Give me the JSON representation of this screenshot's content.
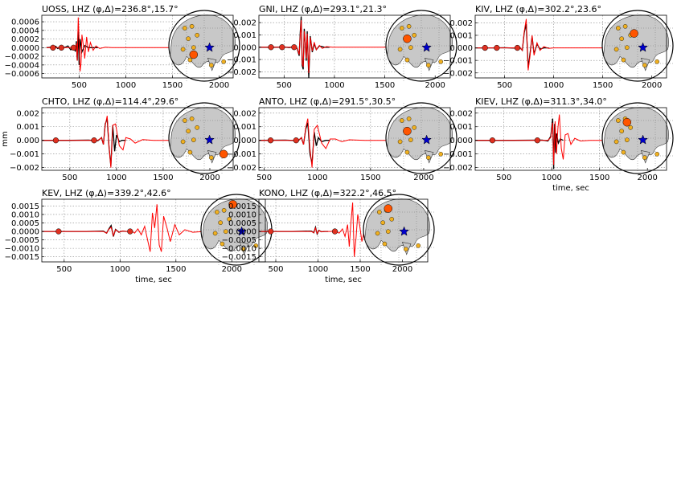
{
  "figure": {
    "y_unit_label": "mm",
    "x_unit_label": "time, sec"
  },
  "colors": {
    "observed": "#000000",
    "synthetic": "#ff0000",
    "station_marker": "#e03020",
    "globe_land": "#c8c8c8",
    "globe_ocean": "#ffffff",
    "event_star": "#0000cc",
    "other_stations": "#f0b020",
    "highlight_station": "#ff5500"
  },
  "chart_data": [
    {
      "type": "line",
      "title": "UOSS, LHZ (φ,Δ)=236.8°,15.7°",
      "xlim": [
        100,
        2150
      ],
      "ylim": [
        -0.0007,
        0.00075
      ],
      "xticks": [
        500,
        1000,
        1500,
        2000
      ],
      "xtick_labels": [
        "500",
        "1000",
        "1500",
        "2000"
      ],
      "yticks": [
        -0.0006,
        -0.0004,
        -0.0002,
        0.0,
        0.0002,
        0.0004,
        0.0006
      ],
      "ytick_labels": [
        "−0.0006",
        "−0.0004",
        "−0.0002",
        "0.0000",
        "0.0002",
        "0.0004",
        "0.0006"
      ],
      "xlabel": "",
      "ylabel": "",
      "markers_x": [
        220,
        310,
        440
      ],
      "series": [
        {
          "role": "observed",
          "x": [
            150,
            200,
            230,
            250,
            270,
            300,
            320,
            350,
            380,
            410,
            440,
            460,
            470,
            480,
            490,
            500,
            510,
            530,
            560,
            600,
            640,
            700
          ],
          "y": [
            0,
            1e-05,
            -2e-05,
            3e-05,
            -2e-05,
            2e-05,
            -1e-05,
            1e-05,
            4e-05,
            -5e-05,
            2e-05,
            -9e-05,
            0.00015,
            -0.0003,
            0.0005,
            -0.0004,
            0.0002,
            -0.0001,
            5e-05,
            0,
            0,
            0
          ]
        },
        {
          "role": "synthetic",
          "x": [
            150,
            400,
            440,
            460,
            470,
            480,
            490,
            500,
            510,
            520,
            530,
            545,
            560,
            580,
            600,
            620,
            650,
            680,
            720,
            780,
            850,
            950,
            1100,
            1300,
            1500,
            1700,
            1800
          ],
          "y": [
            0,
            0,
            1e-05,
            -5e-05,
            0.0001,
            -0.0003,
            0.0007,
            0.0002,
            -0.00055,
            -0.00035,
            0.0003,
            5e-05,
            -0.00025,
            0.00025,
            -0.0001,
            0.00012,
            -6e-05,
            4e-05,
            -2e-05,
            1e-05,
            0,
            0,
            0,
            0,
            0,
            0,
            0
          ]
        }
      ]
    },
    {
      "type": "line",
      "title": "GNI, LHZ (φ,Δ)=293.1°,21.3°",
      "xlim": [
        250,
        2150
      ],
      "ylim": [
        -0.0025,
        0.0026
      ],
      "xticks": [
        500,
        1000,
        1500,
        2000
      ],
      "xtick_labels": [
        "500",
        "1000",
        "1500",
        "2000"
      ],
      "yticks": [
        -0.002,
        -0.001,
        0.0,
        0.001,
        0.002
      ],
      "ytick_labels": [
        "−0.002",
        "−0.001",
        "0.000",
        "0.001",
        "0.002"
      ],
      "xlabel": "",
      "ylabel": "",
      "markers_x": [
        370,
        480,
        600
      ],
      "series": [
        {
          "role": "observed",
          "x": [
            250,
            400,
            500,
            550,
            600,
            630,
            650,
            660,
            670,
            680,
            690,
            700,
            710,
            720,
            730,
            745,
            760,
            780,
            800,
            820,
            850,
            900,
            950
          ],
          "y": [
            0,
            0,
            2e-05,
            -3e-05,
            5e-05,
            -0.0001,
            -0.0007,
            0.0012,
            0.0025,
            -0.0015,
            -0.0018,
            0.0015,
            0.0004,
            -0.0011,
            0.0013,
            -0.0025,
            0.0009,
            -0.0004,
            0.0003,
            -0.0002,
            0.0001,
            0,
            0
          ]
        },
        {
          "role": "synthetic",
          "x": [
            250,
            550,
            600,
            630,
            650,
            660,
            670,
            680,
            690,
            700,
            710,
            720,
            730,
            745,
            760,
            780,
            800,
            820,
            850,
            880,
            920,
            980,
            1050,
            1200,
            1500,
            1800
          ],
          "y": [
            0,
            0,
            4e-05,
            -8e-05,
            -0.0006,
            0.001,
            0.0022,
            -0.0013,
            -0.0016,
            0.0013,
            0.0004,
            -0.0009,
            0.0011,
            -0.0021,
            0.0008,
            -0.0003,
            0.0004,
            -0.0002,
            0.00015,
            -0.0001,
            5e-05,
            0,
            0,
            0,
            0,
            0
          ]
        }
      ]
    },
    {
      "type": "line",
      "title": "KIV, LHZ (φ,Δ)=302.2°,23.6°",
      "xlim": [
        200,
        2150
      ],
      "ylim": [
        -0.0024,
        0.0026
      ],
      "xticks": [
        500,
        1000,
        1500,
        2000
      ],
      "xtick_labels": [
        "500",
        "1000",
        "1500",
        "2000"
      ],
      "yticks": [
        -0.002,
        -0.001,
        0.0,
        0.001,
        0.002
      ],
      "ytick_labels": [
        "−0.002",
        "−0.001",
        "0.000",
        "0.001",
        "0.002"
      ],
      "xlabel": "",
      "ylabel": "",
      "markers_x": [
        300,
        420,
        630
      ],
      "series": [
        {
          "role": "observed",
          "x": [
            200,
            400,
            500,
            600,
            650,
            680,
            700,
            720,
            740,
            760,
            780,
            800,
            830,
            860,
            900,
            950
          ],
          "y": [
            0,
            0,
            1e-05,
            -2e-05,
            8e-05,
            -0.0002,
            0.0012,
            0.0019,
            -0.0016,
            -0.0004,
            0.0009,
            -0.0005,
            0.0003,
            -0.0001,
            0,
            0
          ]
        },
        {
          "role": "synthetic",
          "x": [
            200,
            600,
            650,
            680,
            700,
            720,
            740,
            760,
            780,
            800,
            830,
            860,
            900,
            950,
            1000,
            1100,
            1300,
            1600,
            1800
          ],
          "y": [
            0,
            0,
            0.0001,
            -0.0002,
            0.0013,
            0.0023,
            -0.0018,
            -0.0006,
            0.001,
            -0.0006,
            0.0004,
            -0.0002,
            0.0001,
            -5e-05,
            0,
            0,
            0,
            0,
            0
          ]
        }
      ]
    },
    {
      "type": "line",
      "title": "CHTO, LHZ (φ,Δ)=114.4°,29.6°",
      "xlim": [
        200,
        2250
      ],
      "ylim": [
        -0.0022,
        0.0024
      ],
      "xticks": [
        500,
        1000,
        1500,
        2000
      ],
      "xtick_labels": [
        "500",
        "1000",
        "1500",
        "2000"
      ],
      "yticks": [
        -0.002,
        -0.001,
        0.0,
        0.001,
        0.002
      ],
      "ytick_labels": [
        "−0.002",
        "−0.001",
        "0.000",
        "0.001",
        "0.002"
      ],
      "xlabel": "",
      "ylabel": "mm",
      "markers_x": [
        350,
        760
      ],
      "series": [
        {
          "role": "observed",
          "x": [
            200,
            500,
            700,
            800,
            840,
            860,
            880,
            900,
            920,
            940,
            960,
            980,
            1000,
            1030,
            1060,
            1100
          ],
          "y": [
            0,
            0,
            2e-05,
            -3e-05,
            0.0002,
            -0.0003,
            0.0012,
            0.0016,
            -0.0005,
            -0.0019,
            0.0011,
            -0.0008,
            0.0004,
            -0.0001,
            0,
            0
          ]
        },
        {
          "role": "synthetic",
          "x": [
            200,
            800,
            840,
            860,
            880,
            900,
            920,
            940,
            960,
            990,
            1030,
            1070,
            1100,
            1150,
            1200,
            1280,
            1400,
            1600,
            1800,
            2000
          ],
          "y": [
            0,
            0,
            0.0002,
            -0.0003,
            0.0011,
            0.0018,
            -0.0004,
            -0.002,
            0.0011,
            0.0012,
            -0.0004,
            -0.0007,
            0.0002,
            0.0001,
            -0.0002,
            5e-05,
            0,
            0,
            0,
            0
          ]
        }
      ]
    },
    {
      "type": "line",
      "title": "ANTO, LHZ (φ,Δ)=291.5°,30.5°",
      "xlim": [
        450,
        2250
      ],
      "ylim": [
        -0.0022,
        0.0024
      ],
      "xticks": [
        500,
        1000,
        1500,
        2000
      ],
      "xtick_labels": [
        "500",
        "1000",
        "1500",
        "2000"
      ],
      "yticks": [
        -0.002,
        -0.001,
        0.0,
        0.001,
        0.002
      ],
      "ytick_labels": [
        "−0.002",
        "−0.001",
        "0.000",
        "0.001",
        "0.002"
      ],
      "xlabel": "",
      "ylabel": "",
      "markers_x": [
        560,
        800
      ],
      "series": [
        {
          "role": "observed",
          "x": [
            450,
            700,
            820,
            850,
            870,
            890,
            910,
            930,
            950,
            970,
            990,
            1010,
            1040,
            1080,
            1120
          ],
          "y": [
            0,
            2e-05,
            -3e-05,
            0.0002,
            -0.0003,
            0.0008,
            0.0013,
            -0.001,
            -0.0017,
            0.0006,
            -0.0004,
            0.0002,
            -0.0001,
            0,
            0
          ]
        },
        {
          "role": "synthetic",
          "x": [
            450,
            820,
            850,
            870,
            890,
            910,
            930,
            950,
            970,
            1000,
            1040,
            1080,
            1120,
            1170,
            1230,
            1300,
            1450,
            1700,
            2000
          ],
          "y": [
            0,
            0,
            0.0002,
            -0.0003,
            0.0009,
            0.0016,
            -0.0006,
            -0.002,
            0.0008,
            0.0011,
            -0.0002,
            -0.0006,
            0.0001,
            0.0001,
            -0.0001,
            4e-05,
            0,
            0,
            0
          ]
        }
      ]
    },
    {
      "type": "line",
      "title": "KIEV, LHZ (φ,Δ)=311.3°,34.0°",
      "xlim": [
        200,
        2200
      ],
      "ylim": [
        -0.0022,
        0.0024
      ],
      "xticks": [
        500,
        1000,
        1500,
        2000
      ],
      "xtick_labels": [
        "500",
        "1000",
        "1500",
        "2000"
      ],
      "yticks": [
        -0.002,
        -0.001,
        0.0,
        0.001,
        0.002
      ],
      "ytick_labels": [
        "−0.002",
        "−0.001",
        "0.000",
        "0.001",
        "0.002"
      ],
      "xlabel": "time, sec",
      "ylabel": "",
      "markers_x": [
        380,
        850
      ],
      "series": [
        {
          "role": "observed",
          "x": [
            200,
            600,
            900,
            960,
            990,
            1010,
            1020,
            1030,
            1040,
            1050,
            1070,
            1090,
            1120
          ],
          "y": [
            0,
            0,
            2e-05,
            -5e-05,
            0.0003,
            0.0016,
            -0.0021,
            0.0012,
            -0.0009,
            0.0005,
            -0.0002,
            0.0001,
            0
          ]
        },
        {
          "role": "synthetic",
          "x": [
            200,
            960,
            990,
            1010,
            1020,
            1035,
            1050,
            1065,
            1080,
            1100,
            1120,
            1140,
            1170,
            1200,
            1240,
            1300,
            1400,
            1550,
            1800,
            2000
          ],
          "y": [
            0,
            0,
            0.0002,
            0.0013,
            -0.0018,
            0.0014,
            -0.001,
            0.0009,
            0.0019,
            -0.0006,
            -0.0014,
            0.0004,
            0.0005,
            -0.0003,
            0.00015,
            -5e-05,
            0,
            0,
            0,
            0
          ]
        }
      ]
    },
    {
      "type": "line",
      "title": "KEV, LHZ (φ,Δ)=339.2°,42.6°",
      "xlim": [
        300,
        2300
      ],
      "ylim": [
        -0.0018,
        0.0019
      ],
      "xticks": [
        500,
        1000,
        1500,
        2000
      ],
      "xtick_labels": [
        "500",
        "1000",
        "1500",
        "2000"
      ],
      "yticks": [
        -0.0015,
        -0.001,
        -0.0005,
        0.0,
        0.0005,
        0.001,
        0.0015
      ],
      "ytick_labels": [
        "−0.0015",
        "−0.0010",
        "−0.0005",
        "0.0000",
        "0.0005",
        "0.0010",
        "0.0015"
      ],
      "xlabel": "time, sec",
      "ylabel": "",
      "markers_x": [
        450,
        1090
      ],
      "series": [
        {
          "role": "observed",
          "x": [
            300,
            700,
            850,
            880,
            900,
            920,
            940,
            960,
            990,
            1020,
            1060
          ],
          "y": [
            0,
            0,
            2e-05,
            -0.0001,
            0.00015,
            0.00035,
            -0.0003,
            0.00012,
            -5e-05,
            2e-05,
            0
          ]
        },
        {
          "role": "synthetic",
          "x": [
            300,
            850,
            880,
            900,
            920,
            940,
            960,
            990,
            1020,
            1060,
            1100,
            1130,
            1160,
            1190,
            1220,
            1250,
            1270,
            1290,
            1310,
            1330,
            1350,
            1370,
            1390,
            1420,
            1450,
            1490,
            1530,
            1580,
            1650,
            1750,
            1900
          ],
          "y": [
            0,
            0,
            -0.0001,
            0.00012,
            0.00025,
            -0.00025,
            0.0001,
            -5e-05,
            2e-05,
            0,
            5e-05,
            -0.0001,
            0.00015,
            -0.0002,
            0.0003,
            -0.0006,
            -0.0012,
            0.0011,
            0.0002,
            0.0016,
            -0.0008,
            -0.0012,
            0.0009,
            0.0002,
            -0.0006,
            0.0004,
            -0.0002,
            0.0001,
            -5e-05,
            0,
            0
          ]
        }
      ]
    },
    {
      "type": "line",
      "title": "KONO, LHZ (φ,Δ)=322.2°,46.5°",
      "xlim": [
        300,
        2300
      ],
      "ylim": [
        -0.0018,
        0.0019
      ],
      "xticks": [
        500,
        1000,
        1500,
        2000
      ],
      "xtick_labels": [
        "500",
        "1000",
        "1500",
        "2000"
      ],
      "yticks": [
        -0.0015,
        -0.001,
        -0.0005,
        0.0,
        0.0005,
        0.001,
        0.0015
      ],
      "ytick_labels": [
        "−0.0015",
        "−0.0010",
        "−0.0005",
        "0.0000",
        "0.0005",
        "0.0010",
        "0.0015"
      ],
      "xlabel": "time, sec",
      "ylabel": "",
      "markers_x": [
        440,
        1200
      ],
      "series": [
        {
          "role": "observed",
          "x": [
            300,
            700,
            920,
            950,
            970,
            990,
            1010,
            1040,
            1080,
            1120
          ],
          "y": [
            0,
            0,
            2e-05,
            -8e-05,
            0.00025,
            -0.00015,
            6e-05,
            -2e-05,
            0,
            0
          ]
        },
        {
          "role": "synthetic",
          "x": [
            300,
            920,
            950,
            970,
            990,
            1010,
            1040,
            1080,
            1150,
            1200,
            1250,
            1290,
            1320,
            1350,
            1370,
            1390,
            1410,
            1430,
            1450,
            1470,
            1490,
            1520,
            1560,
            1610,
            1670,
            1750,
            1850,
            2000
          ],
          "y": [
            0,
            0,
            -8e-05,
            0.0002,
            -0.00012,
            5e-05,
            -2e-05,
            0,
            0,
            4e-05,
            -0.0001,
            0.00015,
            -0.0003,
            0.0004,
            -0.0009,
            0.0005,
            0.0017,
            -0.0015,
            -0.0004,
            0.001,
            0.0005,
            -0.0006,
            0.0003,
            -0.00015,
            6e-05,
            -2e-05,
            0,
            0
          ]
        }
      ]
    }
  ],
  "globe_insets": [
    {
      "other_stations_visible": true
    },
    {
      "other_stations_visible": true
    },
    {
      "other_stations_visible": true
    },
    {
      "other_stations_visible": true
    },
    {
      "other_stations_visible": true
    },
    {
      "other_stations_visible": true
    },
    {
      "other_stations_visible": true
    },
    {
      "other_stations_visible": true
    }
  ]
}
